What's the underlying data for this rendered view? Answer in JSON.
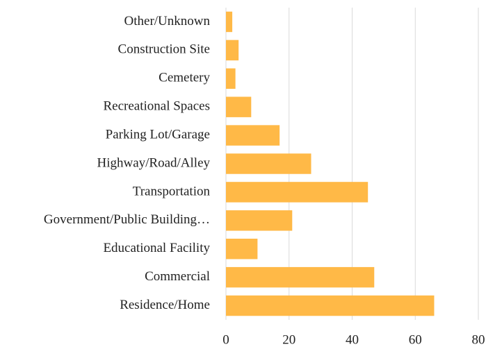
{
  "chart_data": {
    "type": "barh",
    "categories": [
      "Other/Unknown",
      "Construction Site",
      "Cemetery",
      "Recreational Spaces",
      "Parking Lot/Garage",
      "Highway/Road/Alley",
      "Transportation",
      "Government/Public Building…",
      "Educational Facility",
      "Commercial",
      "Residence/Home"
    ],
    "values": [
      2,
      4,
      3,
      8,
      17,
      27,
      45,
      21,
      10,
      47,
      66
    ],
    "color": "#ffb947",
    "xlim": [
      0,
      80
    ],
    "xticks": [
      0,
      20,
      40,
      60,
      80
    ],
    "grid": true
  }
}
